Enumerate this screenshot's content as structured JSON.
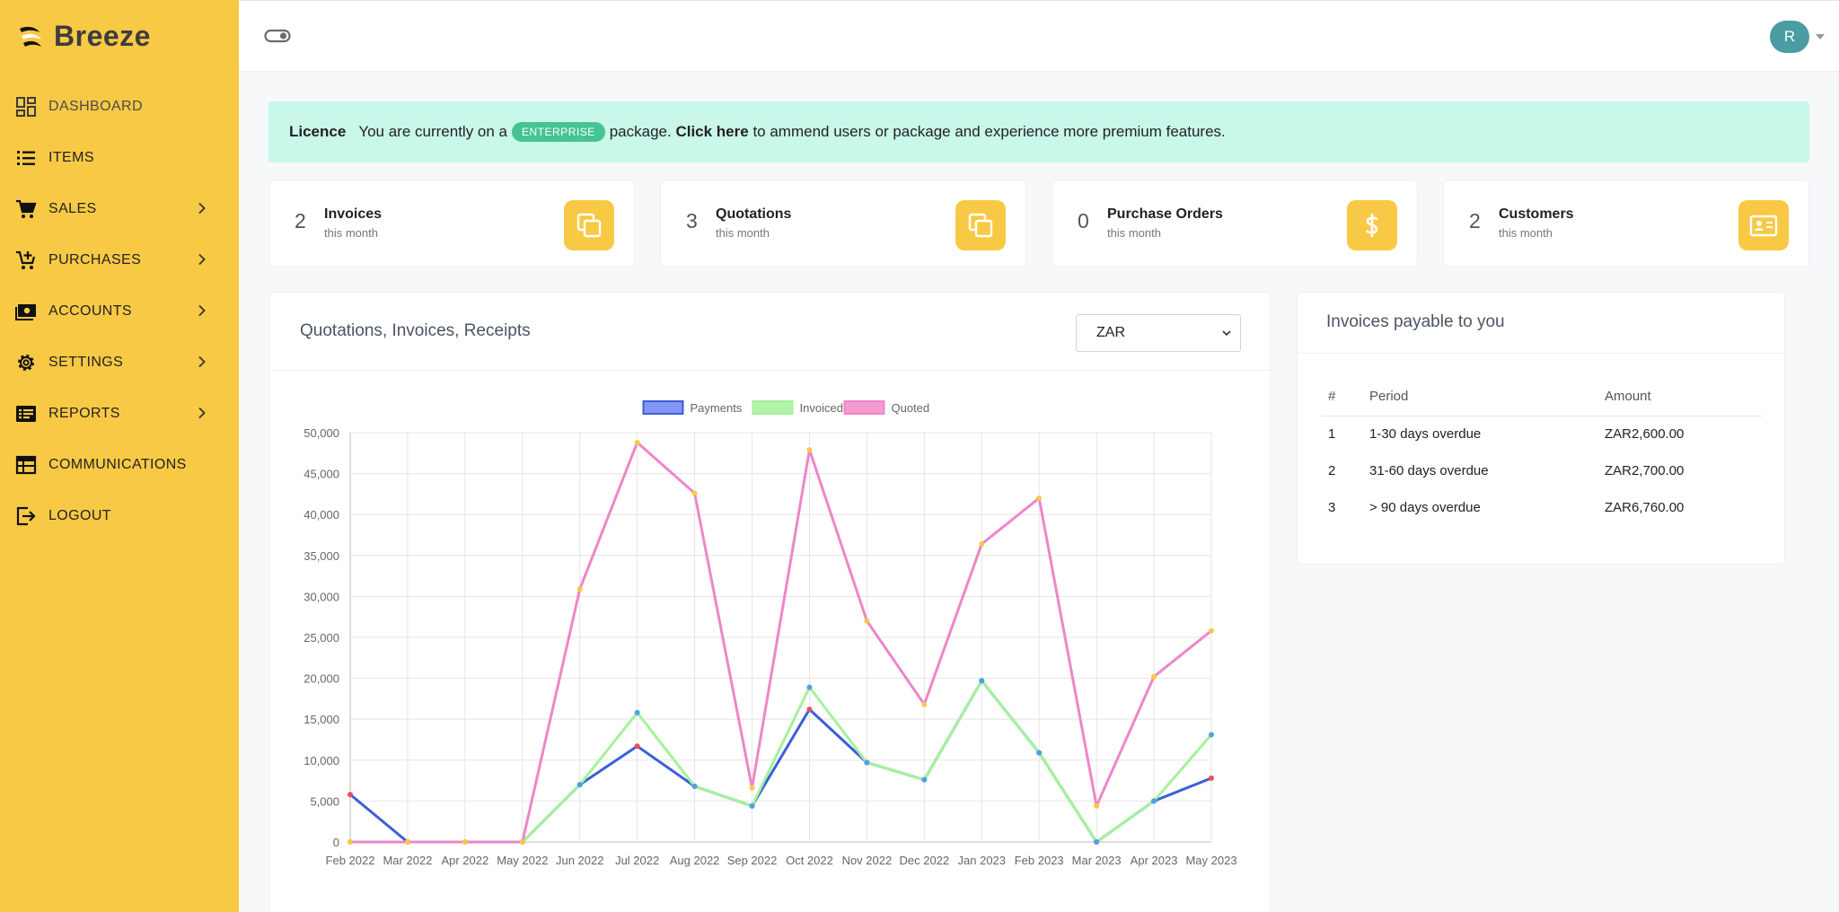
{
  "brand": {
    "name": "Breeze"
  },
  "nav": [
    {
      "label": "DASHBOARD",
      "icon": "dashboard-icon",
      "active": true,
      "chevron": false
    },
    {
      "label": "ITEMS",
      "icon": "list-icon",
      "chevron": false
    },
    {
      "label": "SALES",
      "icon": "cart-icon",
      "chevron": true
    },
    {
      "label": "PURCHASES",
      "icon": "cart-add-icon",
      "chevron": true
    },
    {
      "label": "ACCOUNTS",
      "icon": "cash-icon",
      "chevron": true
    },
    {
      "label": "SETTINGS",
      "icon": "gear-icon",
      "chevron": true
    },
    {
      "label": "REPORTS",
      "icon": "report-icon",
      "chevron": true
    },
    {
      "label": "COMMUNICATIONS",
      "icon": "calendar-icon",
      "chevron": false
    },
    {
      "label": "LOGOUT",
      "icon": "logout-icon",
      "chevron": false
    }
  ],
  "topbar": {
    "avatar_initial": "R"
  },
  "licence": {
    "title": "Licence",
    "text_before": "You are currently on a",
    "badge": "ENTERPRISE",
    "text_middle": "package.",
    "link": "Click here",
    "text_after": "to ammend users or package and experience more premium features."
  },
  "stats": [
    {
      "count": "2",
      "label": "Invoices",
      "sub": "this month",
      "icon": "copy-icon"
    },
    {
      "count": "3",
      "label": "Quotations",
      "sub": "this month",
      "icon": "copy-icon"
    },
    {
      "count": "0",
      "label": "Purchase Orders",
      "sub": "this month",
      "icon": "dollar-icon"
    },
    {
      "count": "2",
      "label": "Customers",
      "sub": "this month",
      "icon": "id-card-icon"
    }
  ],
  "chart_panel": {
    "title": "Quotations, Invoices, Receipts",
    "currency": "ZAR"
  },
  "payable": {
    "title": "Invoices payable to you",
    "headers": [
      "#",
      "Period",
      "Amount"
    ],
    "rows": [
      [
        "1",
        "1-30 days overdue",
        "ZAR2,600.00"
      ],
      [
        "2",
        "31-60 days overdue",
        "ZAR2,700.00"
      ],
      [
        "3",
        "> 90 days overdue",
        "ZAR6,760.00"
      ]
    ]
  },
  "chart_data": {
    "type": "line",
    "categories": [
      "Feb 2022",
      "Mar 2022",
      "Apr 2022",
      "May 2022",
      "Jun 2022",
      "Jul 2022",
      "Aug 2022",
      "Sep 2022",
      "Oct 2022",
      "Nov 2022",
      "Dec 2022",
      "Jan 2023",
      "Feb 2023",
      "Mar 2023",
      "Apr 2023",
      "May 2023"
    ],
    "ylim": [
      0,
      50000
    ],
    "yticks": [
      0,
      5000,
      10000,
      15000,
      20000,
      25000,
      30000,
      35000,
      40000,
      45000,
      50000
    ],
    "ytick_labels": [
      "0",
      "5,000",
      "10,000",
      "15,000",
      "20,000",
      "25,000",
      "30,000",
      "35,000",
      "40,000",
      "45,000",
      "50,000"
    ],
    "grid": true,
    "legend": "top",
    "series": [
      {
        "name": "Payments",
        "color": "#3b5fd9",
        "fill": "#6e82f5",
        "point": "#e8505b",
        "values": [
          5800,
          0,
          0,
          0,
          7000,
          11700,
          6800,
          4400,
          16200,
          9700,
          7600,
          19700,
          10900,
          0,
          5000,
          7800
        ]
      },
      {
        "name": "Invoiced",
        "color": "#a4f29a",
        "fill": "#a4f29a",
        "point": "#4aa3e8",
        "values": [
          0,
          0,
          0,
          0,
          7000,
          15800,
          6800,
          4400,
          18900,
          9700,
          7600,
          19700,
          10900,
          0,
          5000,
          13100
        ]
      },
      {
        "name": "Quoted",
        "color": "#ee86c8",
        "fill": "#f58ac8",
        "point": "#f8c945",
        "values": [
          0,
          0,
          0,
          0,
          30900,
          48800,
          42600,
          6600,
          47900,
          27000,
          16800,
          36400,
          42000,
          4400,
          20200,
          25800
        ]
      }
    ]
  }
}
